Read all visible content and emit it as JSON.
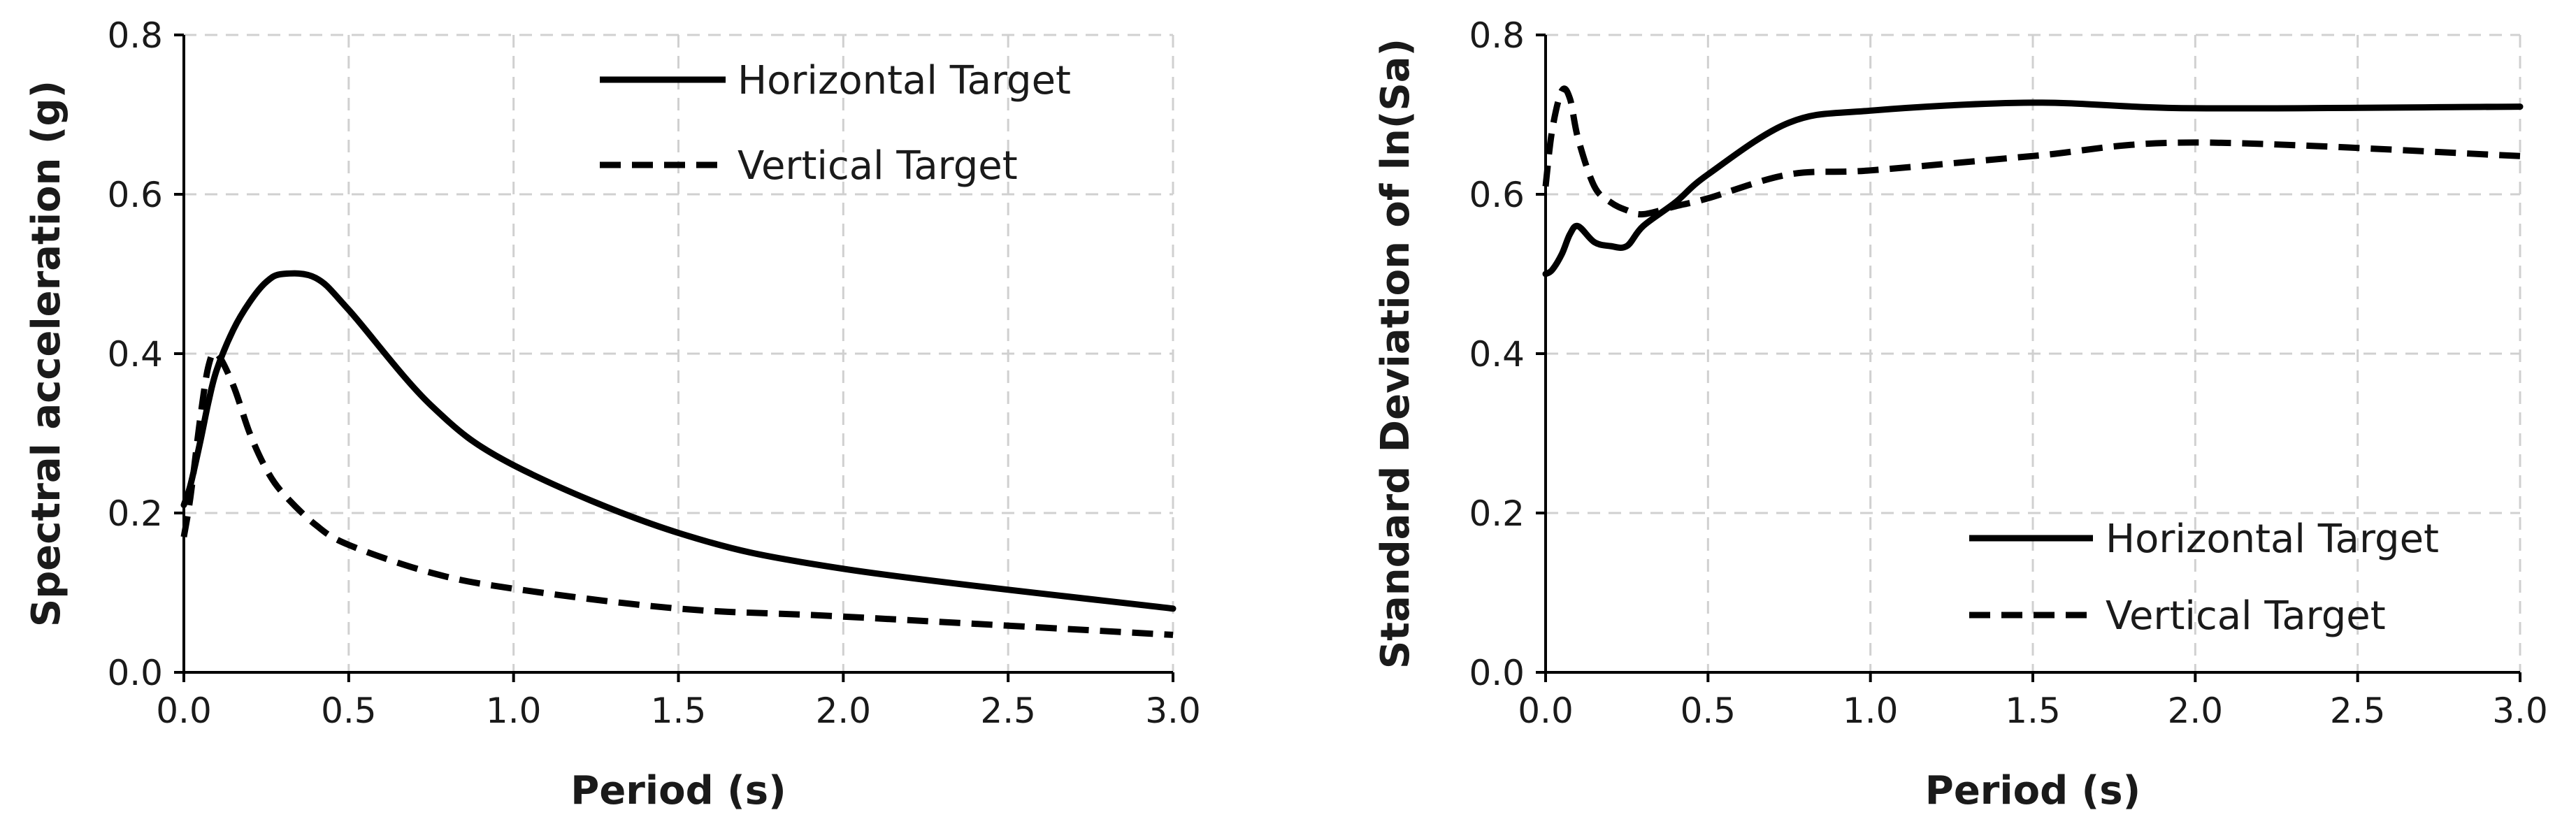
{
  "chart_data": [
    {
      "type": "line",
      "title": "",
      "xlabel": "Period (s)",
      "ylabel": "Spectral acceleration (g)",
      "xlim": [
        0,
        3
      ],
      "ylim": [
        0,
        0.8
      ],
      "xticks": [
        "0.0",
        "0.5",
        "1.0",
        "1.5",
        "2.0",
        "2.5",
        "3.0"
      ],
      "yticks": [
        "0.0",
        "0.2",
        "0.4",
        "0.6",
        "0.8"
      ],
      "grid": true,
      "legend_position": "top-right",
      "series": [
        {
          "name": "Horizontal Target",
          "style": "solid",
          "color": "#000000",
          "x": [
            0.0,
            0.02,
            0.05,
            0.075,
            0.1,
            0.15,
            0.2,
            0.25,
            0.3,
            0.4,
            0.5,
            0.75,
            1.0,
            1.5,
            2.0,
            3.0
          ],
          "y": [
            0.21,
            0.235,
            0.29,
            0.34,
            0.38,
            0.43,
            0.465,
            0.49,
            0.5,
            0.495,
            0.455,
            0.335,
            0.26,
            0.175,
            0.13,
            0.08
          ]
        },
        {
          "name": "Vertical Target",
          "style": "dashed",
          "color": "#000000",
          "x": [
            0.0,
            0.02,
            0.05,
            0.075,
            0.1,
            0.15,
            0.2,
            0.25,
            0.3,
            0.4,
            0.5,
            0.75,
            1.0,
            1.5,
            2.0,
            3.0
          ],
          "y": [
            0.17,
            0.22,
            0.32,
            0.385,
            0.4,
            0.36,
            0.3,
            0.255,
            0.225,
            0.185,
            0.16,
            0.125,
            0.105,
            0.08,
            0.07,
            0.047
          ]
        }
      ]
    },
    {
      "type": "line",
      "title": "",
      "xlabel": "Period (s)",
      "ylabel": "Standard Deviation of ln(Sa)",
      "xlim": [
        0,
        3
      ],
      "ylim": [
        0,
        0.8
      ],
      "xticks": [
        "0.0",
        "0.5",
        "1.0",
        "1.5",
        "2.0",
        "2.5",
        "3.0"
      ],
      "yticks": [
        "0.0",
        "0.2",
        "0.4",
        "0.6",
        "0.8"
      ],
      "grid": true,
      "legend_position": "bottom-right",
      "series": [
        {
          "name": "Horizontal Target",
          "style": "solid",
          "color": "#000000",
          "x": [
            0.0,
            0.02,
            0.05,
            0.075,
            0.1,
            0.15,
            0.2,
            0.25,
            0.3,
            0.4,
            0.5,
            0.75,
            1.0,
            1.5,
            2.0,
            3.0
          ],
          "y": [
            0.5,
            0.505,
            0.525,
            0.55,
            0.56,
            0.54,
            0.535,
            0.535,
            0.56,
            0.59,
            0.625,
            0.69,
            0.705,
            0.715,
            0.708,
            0.71
          ]
        },
        {
          "name": "Vertical Target",
          "style": "dashed",
          "color": "#000000",
          "x": [
            0.0,
            0.02,
            0.05,
            0.075,
            0.1,
            0.15,
            0.2,
            0.25,
            0.3,
            0.4,
            0.5,
            0.75,
            1.0,
            1.5,
            2.0,
            3.0
          ],
          "y": [
            0.61,
            0.68,
            0.73,
            0.72,
            0.67,
            0.61,
            0.59,
            0.58,
            0.575,
            0.585,
            0.595,
            0.625,
            0.63,
            0.648,
            0.665,
            0.648
          ]
        }
      ]
    }
  ]
}
